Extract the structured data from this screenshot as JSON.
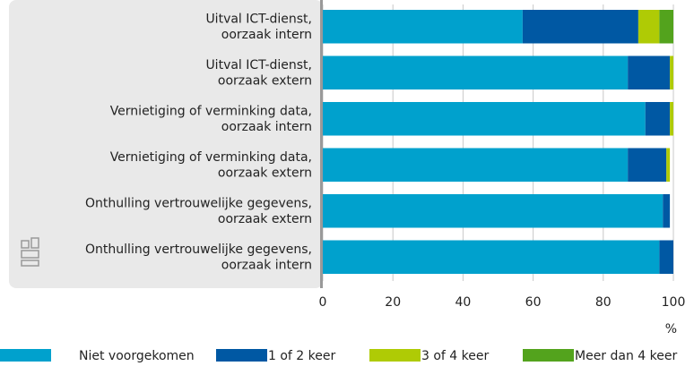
{
  "chart_data": {
    "type": "stacked-bar-horizontal",
    "categories": [
      "Uitval ICT-dienst, oorzaak intern",
      "Uitval ICT-dienst, oorzaak extern",
      "Vernietiging of verminking data, oorzaak intern",
      "Vernietiging of verminking data, oorzaak extern",
      "Onthulling vertrouwelijke gegevens, oorzaak extern",
      "Onthulling vertrouwelijke gegevens, oorzaak intern"
    ],
    "series": [
      {
        "name": "Niet voorgekomen",
        "color": "#00a1cd",
        "values": [
          57,
          87,
          92,
          87,
          97,
          96
        ]
      },
      {
        "name": "1 of 2 keer",
        "color": "#0058a3",
        "values": [
          33,
          12,
          7,
          11,
          2,
          4
        ]
      },
      {
        "name": "3 of 4 keer",
        "color": "#afcb05",
        "values": [
          6,
          1,
          1,
          1,
          0,
          0
        ]
      },
      {
        "name": "Meer dan 4 keer",
        "color": "#53a31d",
        "values": [
          4,
          0,
          0,
          0,
          0,
          0
        ]
      }
    ],
    "xlabel": "%",
    "xlim": [
      0,
      100
    ],
    "xticks": [
      0,
      20,
      40,
      60,
      80,
      100
    ],
    "grid": true,
    "legend": "bottom"
  }
}
